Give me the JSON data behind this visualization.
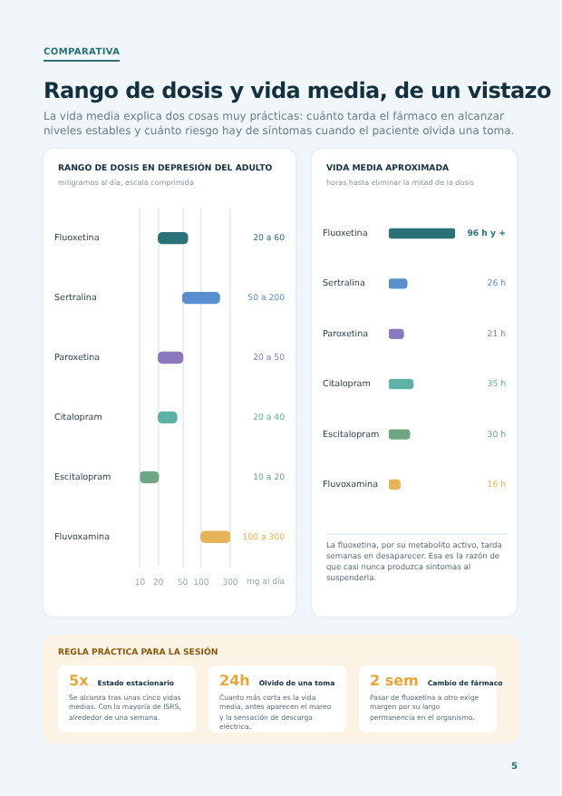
{
  "chart_data": [
    {
      "type": "other",
      "title": "Rango de dosis y vida media, de un vistazo",
      "subtitle": "La vida media explica dos cosas muy prácticas: cuánto tarda el fármaco en alcanzar niveles estables y cuánto riesgo hay de síntomas cuando el paciente olvida una toma.",
      "annotations": [
        "COMPARATIVA"
      ]
    },
    {
      "type": "bar",
      "orientation": "horizontal",
      "title": "RANGO DE DOSIS EN DEPRESIÓN DEL ADULTO",
      "subtitle": "miligramos al día, escala comprimida",
      "xlabel": "mg al día",
      "categories": [
        "Fluoxetina",
        "Sertralina",
        "Paroxetina",
        "Citalopram",
        "Escitalopram",
        "Fluvoxamina"
      ],
      "base": [
        20,
        50,
        20,
        20,
        10,
        100
      ],
      "values": [
        40,
        150,
        30,
        20,
        10,
        200
      ],
      "annotations": [
        "20 a 60",
        "50 a 200",
        "20 a 50",
        "20 a 40",
        "10 a 20",
        "100 a 300"
      ],
      "colors": [
        "#2a7178",
        "#5a8fcf",
        "#8b78bf",
        "#5fb0a6",
        "#6ea583",
        "#e6b456"
      ],
      "log": "x",
      "xlim": [
        10,
        300
      ],
      "xticks": [
        10,
        20,
        50,
        100,
        300
      ],
      "grid": "x",
      "legend": false
    },
    {
      "type": "bar",
      "orientation": "horizontal",
      "title": "VIDA MEDIA APROXIMADA",
      "subtitle": "horas hasta eliminar la mitad de la dosis",
      "categories": [
        "Fluoxetina",
        "Sertralina",
        "Paroxetina",
        "Citalopram",
        "Escitalopram",
        "Fluvoxamina"
      ],
      "values": [
        96,
        26,
        21,
        35,
        30,
        16
      ],
      "value_labels": [
        "96 h y +",
        "26 h",
        "21 h",
        "35 h",
        "30 h",
        "16 h"
      ],
      "colors": [
        "#2a7178",
        "#5a8fcf",
        "#8b78bf",
        "#5fb0a6",
        "#6ea583",
        "#e6b456"
      ],
      "legend": false,
      "annotations": [
        "La fluoxetina, por su metabolito activo, tarda semanas en desaparecer. Esa es la razón de que casi nunca produzca síntomas al suspenderla."
      ]
    },
    {
      "type": "other",
      "title": "REGLA PRÁCTICA PARA LA SESIÓN",
      "annotations": [
        "5x",
        "Estado estacionario",
        "Se alcanza tras unas cinco vidas medias. Con la mayoría de ISRS, alrededor de una semana.",
        "24h",
        "Olvido de una toma",
        "Cuanto más corta es la vida media, antes aparecen el mareo y la sensación de descarga eléctrica.",
        "2 sem",
        "Cambio de fármaco",
        "Pasar de fluoxetina a otro exige margen por su largo permanencia en el organismo.",
        "5"
      ]
    }
  ]
}
